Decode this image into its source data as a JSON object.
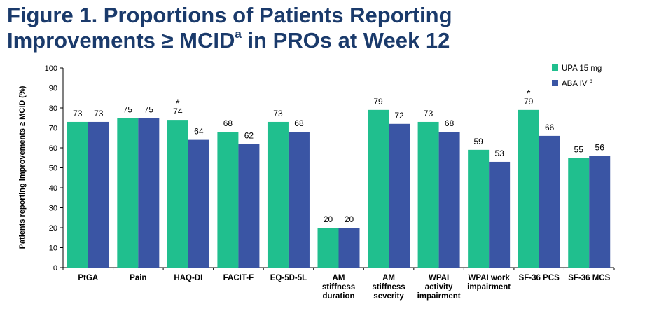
{
  "title": {
    "part1": "Figure 1. Proportions of Patients Reporting",
    "part2": "Improvements ≥ MCID",
    "sup": "a",
    "part3": " in PROs at Week 12"
  },
  "colors": {
    "upa": "#20bf8e",
    "aba": "#3a55a4",
    "text": "#000000",
    "title": "#1a3a6b"
  },
  "chart_data": {
    "type": "bar",
    "ylabel": "Patients reporting improvements ≥ MCID (%)",
    "ylim": [
      0,
      100
    ],
    "yticks": [
      0,
      10,
      20,
      30,
      40,
      50,
      60,
      70,
      80,
      90,
      100
    ],
    "grid": false,
    "legend_position": "top-right",
    "categories": [
      [
        "PtGA"
      ],
      [
        "Pain"
      ],
      [
        "HAQ-DI"
      ],
      [
        "FACIT-F"
      ],
      [
        "EQ-5D-5L"
      ],
      [
        "AM",
        "stiffness",
        "duration"
      ],
      [
        "AM",
        "stiffness",
        "severity"
      ],
      [
        "WPAI",
        "activity",
        "impairment"
      ],
      [
        "WPAI work",
        "impairment"
      ],
      [
        "SF-36 PCS"
      ],
      [
        "SF-36 MCS"
      ]
    ],
    "series": [
      {
        "name": "UPA 15 mg",
        "name_sup": "",
        "color": "#20bf8e",
        "values": [
          73,
          75,
          74,
          68,
          73,
          20,
          79,
          73,
          59,
          79,
          55
        ]
      },
      {
        "name": "ABA IV",
        "name_sup": "b",
        "color": "#3a55a4",
        "values": [
          73,
          75,
          64,
          62,
          68,
          20,
          72,
          68,
          53,
          66,
          56
        ]
      }
    ],
    "annotations": [
      {
        "category_index": 2,
        "series_index": 0,
        "text": "*"
      },
      {
        "category_index": 9,
        "series_index": 0,
        "text": "*"
      }
    ]
  }
}
